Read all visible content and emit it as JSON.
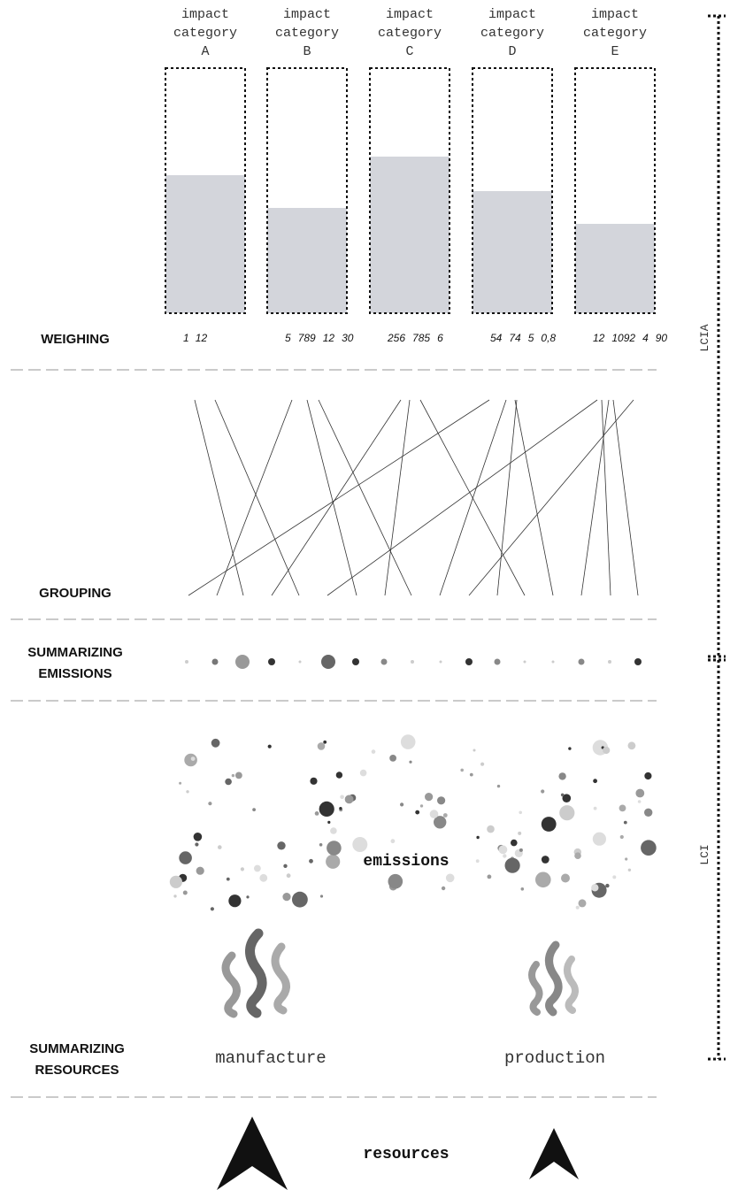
{
  "categories": [
    {
      "label": [
        "impact",
        "category",
        "A"
      ],
      "weights": [
        "1",
        "12"
      ]
    },
    {
      "label": [
        "impact",
        "category",
        "B"
      ],
      "weights": [
        "5",
        "789",
        "12",
        "30"
      ]
    },
    {
      "label": [
        "impact",
        "category",
        "C"
      ],
      "weights": [
        "256",
        "785",
        "6"
      ]
    },
    {
      "label": [
        "impact",
        "category",
        "D"
      ],
      "weights": [
        "54",
        "74",
        "5",
        "0,8"
      ]
    },
    {
      "label": [
        "impact",
        "category",
        "E"
      ],
      "weights": [
        "12",
        "1092",
        "4",
        "90"
      ]
    }
  ],
  "steps": {
    "weighing": "WEIGHING",
    "grouping": "GROUPING",
    "summarizing_emissions": [
      "SUMMARIZING",
      "EMISSIONS"
    ],
    "summarizing_resources": [
      "SUMMARIZING",
      "RESOURCES"
    ]
  },
  "emissions": "emissions",
  "sources": [
    "manufacture",
    "production"
  ],
  "resources": "resources",
  "phases": {
    "lcia": "LCIA",
    "lci": "LCI"
  }
}
